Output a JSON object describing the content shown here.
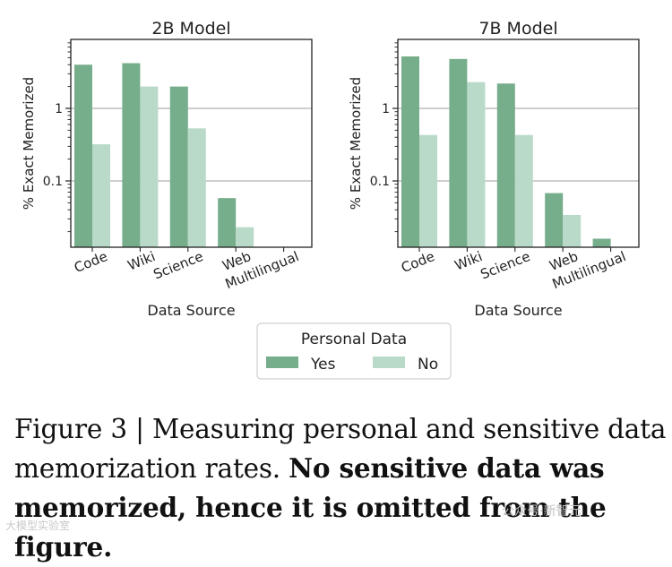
{
  "chart_data": [
    {
      "type": "bar",
      "title": "2B Model",
      "xlabel": "Data Source",
      "ylabel": "% Exact Memorized",
      "yscale": "log",
      "yticks": [
        "0.1",
        "1"
      ],
      "categories": [
        "Code",
        "Wiki",
        "Science",
        "Web",
        "Multilingual"
      ],
      "series": [
        {
          "name": "Yes",
          "values": [
            4.0,
            4.2,
            2.0,
            0.058,
            null
          ]
        },
        {
          "name": "No",
          "values": [
            0.32,
            2.0,
            0.53,
            0.023,
            null
          ]
        }
      ],
      "grid": "horizontal"
    },
    {
      "type": "bar",
      "title": "7B Model",
      "xlabel": "Data Source",
      "ylabel": "% Exact Memorized",
      "yscale": "log",
      "yticks": [
        "0.1",
        "1"
      ],
      "categories": [
        "Code",
        "Wiki",
        "Science",
        "Web",
        "Multilingual"
      ],
      "series": [
        {
          "name": "Yes",
          "values": [
            5.2,
            4.8,
            2.2,
            0.068,
            0.016
          ]
        },
        {
          "name": "No",
          "values": [
            0.43,
            2.3,
            0.43,
            0.034,
            null
          ]
        }
      ],
      "grid": "horizontal"
    }
  ],
  "legend": {
    "title": "Personal Data",
    "placement": "bottom-center",
    "entries": [
      {
        "label": "Yes",
        "color": "#76ad8b"
      },
      {
        "label": "No",
        "color": "#b9dac8"
      }
    ]
  },
  "colors": {
    "yes": "#76ad8b",
    "no": "#b9dac8",
    "grid": "#b0b0b0",
    "axis": "#222222"
  },
  "caption": {
    "prefix": "Figure 3 | Measuring personal and sensitive data memorization rates. ",
    "bold": "No sensitive data was memorized, hence it is omitted from the figure."
  },
  "watermarks": {
    "left": "大模型实验室",
    "right": "公众号·新智元"
  }
}
